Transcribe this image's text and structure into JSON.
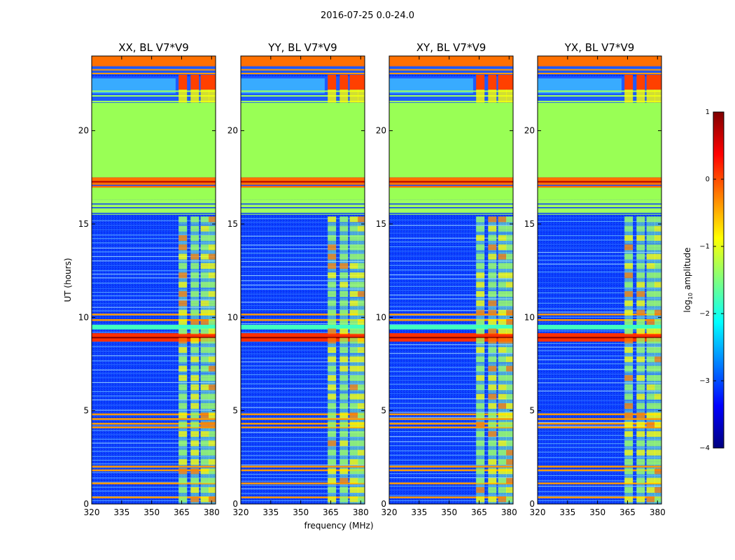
{
  "figure": {
    "suptitle": "2016-07-25 0.0-24.0"
  },
  "chart_data": [
    {
      "type": "heatmap",
      "title": "XX, BL V7*V9",
      "xlabel": "",
      "ylabel": "UT (hours)",
      "xlim": [
        320,
        382
      ],
      "ylim": [
        0,
        24
      ],
      "xticks": [
        "320",
        "335",
        "350",
        "365",
        "380"
      ],
      "yticks": [
        "0",
        "5",
        "10",
        "15",
        "20"
      ]
    },
    {
      "type": "heatmap",
      "title": "YY, BL V7*V9",
      "xlabel": "frequency (MHz)",
      "ylabel": "",
      "xlim": [
        320,
        382
      ],
      "ylim": [
        0,
        24
      ],
      "xticks": [
        "320",
        "335",
        "350",
        "365",
        "380"
      ],
      "yticks": [
        "0",
        "5",
        "10",
        "15",
        "20"
      ]
    },
    {
      "type": "heatmap",
      "title": "XY, BL V7*V9",
      "xlabel": "",
      "ylabel": "",
      "xlim": [
        320,
        382
      ],
      "ylim": [
        0,
        24
      ],
      "xticks": [
        "320",
        "335",
        "350",
        "365",
        "380"
      ],
      "yticks": [
        "0",
        "5",
        "10",
        "15",
        "20"
      ]
    },
    {
      "type": "heatmap",
      "title": "YX, BL V7*V9",
      "xlabel": "",
      "ylabel": "",
      "xlim": [
        320,
        382
      ],
      "ylim": [
        0,
        24
      ],
      "xticks": [
        "320",
        "335",
        "350",
        "365",
        "380"
      ],
      "yticks": [
        "0",
        "5",
        "10",
        "15",
        "20"
      ]
    }
  ],
  "colorbar": {
    "label": "log",
    "label_sub": "10",
    "label_rest": " amplitude",
    "range": [
      -4,
      1
    ],
    "ticks": [
      "1",
      "0",
      "−1",
      "−2",
      "−3",
      "−4"
    ],
    "colormap": [
      "#00007f",
      "#0000ff",
      "#007fff",
      "#00ffff",
      "#7fff7f",
      "#ffff00",
      "#ff7f00",
      "#ff0000",
      "#7f0000"
    ]
  }
}
